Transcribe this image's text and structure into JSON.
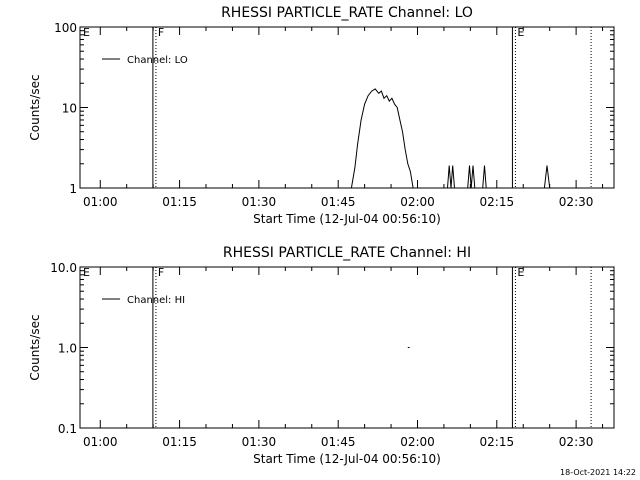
{
  "footer": {
    "timestamp": "18-Oct-2021 14:22"
  },
  "chart_data": [
    {
      "type": "line",
      "title": "RHESSI PARTICLE_RATE Channel: LO",
      "xlabel": "Start Time (12-Jul-04 00:56:10)",
      "ylabel": "Counts/sec",
      "yscale": "log",
      "ylim": [
        1,
        100
      ],
      "xlim": [
        "00:56:10",
        "02:37:10"
      ],
      "y_tick_labels": [
        "1",
        "10",
        "100"
      ],
      "x_tick_labels": [
        "01:00",
        "01:15",
        "01:30",
        "01:45",
        "02:00",
        "02:15",
        "02:30"
      ],
      "legend": {
        "position": "top-left",
        "entries": [
          "Channel: LO"
        ]
      },
      "markers": [
        {
          "label": "E",
          "time": "00:56:10",
          "style": "dotted"
        },
        {
          "label": "F",
          "time": "01:10:20",
          "style": "solid+dotted"
        },
        {
          "label": "E",
          "time": "02:18:20",
          "style": "solid+dotted"
        },
        {
          "label": "",
          "time": "02:32:50",
          "style": "dotted"
        }
      ],
      "series": [
        {
          "name": "Channel: LO",
          "segments": [
            [
              [
                "01:47:30",
                1
              ],
              [
                "01:48:10",
                1.8
              ],
              [
                "01:48:40",
                3.5
              ],
              [
                "01:49:20",
                7
              ],
              [
                "01:50:00",
                11
              ],
              [
                "01:50:40",
                14
              ],
              [
                "01:51:20",
                16
              ],
              [
                "01:52:00",
                17
              ],
              [
                "01:52:40",
                15
              ],
              [
                "01:53:10",
                16
              ],
              [
                "01:53:40",
                13
              ],
              [
                "01:54:10",
                14
              ],
              [
                "01:54:40",
                12
              ],
              [
                "01:55:10",
                13
              ],
              [
                "01:55:40",
                11
              ],
              [
                "01:56:10",
                10
              ],
              [
                "01:56:40",
                7
              ],
              [
                "01:57:10",
                5
              ],
              [
                "01:57:40",
                3
              ],
              [
                "01:58:10",
                2
              ],
              [
                "01:58:40",
                1.6
              ],
              [
                "01:59:10",
                1
              ]
            ],
            [
              [
                "02:05:40",
                1
              ],
              [
                "02:06:00",
                1.9
              ],
              [
                "02:06:20",
                1
              ],
              [
                "02:06:40",
                1.9
              ],
              [
                "02:07:00",
                1
              ]
            ],
            [
              [
                "02:09:30",
                1
              ],
              [
                "02:09:50",
                1.9
              ],
              [
                "02:10:10",
                1
              ],
              [
                "02:10:30",
                1.9
              ],
              [
                "02:10:50",
                1
              ]
            ],
            [
              [
                "02:12:20",
                1
              ],
              [
                "02:12:40",
                1.9
              ],
              [
                "02:13:00",
                1
              ]
            ],
            [
              [
                "02:24:00",
                1
              ],
              [
                "02:24:30",
                1.9
              ],
              [
                "02:25:00",
                1
              ]
            ]
          ]
        }
      ]
    },
    {
      "type": "line",
      "title": "RHESSI PARTICLE_RATE Channel: HI",
      "xlabel": "Start Time (12-Jul-04 00:56:10)",
      "ylabel": "Counts/sec",
      "yscale": "log",
      "ylim": [
        0.1,
        10
      ],
      "xlim": [
        "00:56:10",
        "02:37:10"
      ],
      "y_tick_labels": [
        "0.1",
        "1.0",
        "10.0"
      ],
      "x_tick_labels": [
        "01:00",
        "01:15",
        "01:30",
        "01:45",
        "02:00",
        "02:15",
        "02:30"
      ],
      "legend": {
        "position": "top-left",
        "entries": [
          "Channel: HI"
        ]
      },
      "markers": [
        {
          "label": "E",
          "time": "00:56:10",
          "style": "dotted"
        },
        {
          "label": "F",
          "time": "01:10:20",
          "style": "solid+dotted"
        },
        {
          "label": "E",
          "time": "02:18:20",
          "style": "solid+dotted"
        },
        {
          "label": "",
          "time": "02:32:50",
          "style": "dotted"
        }
      ],
      "series": [
        {
          "name": "Channel: HI",
          "segments": [
            [
              [
                "01:58:10",
                1.0
              ],
              [
                "01:58:30",
                1.0
              ]
            ]
          ]
        }
      ]
    }
  ]
}
